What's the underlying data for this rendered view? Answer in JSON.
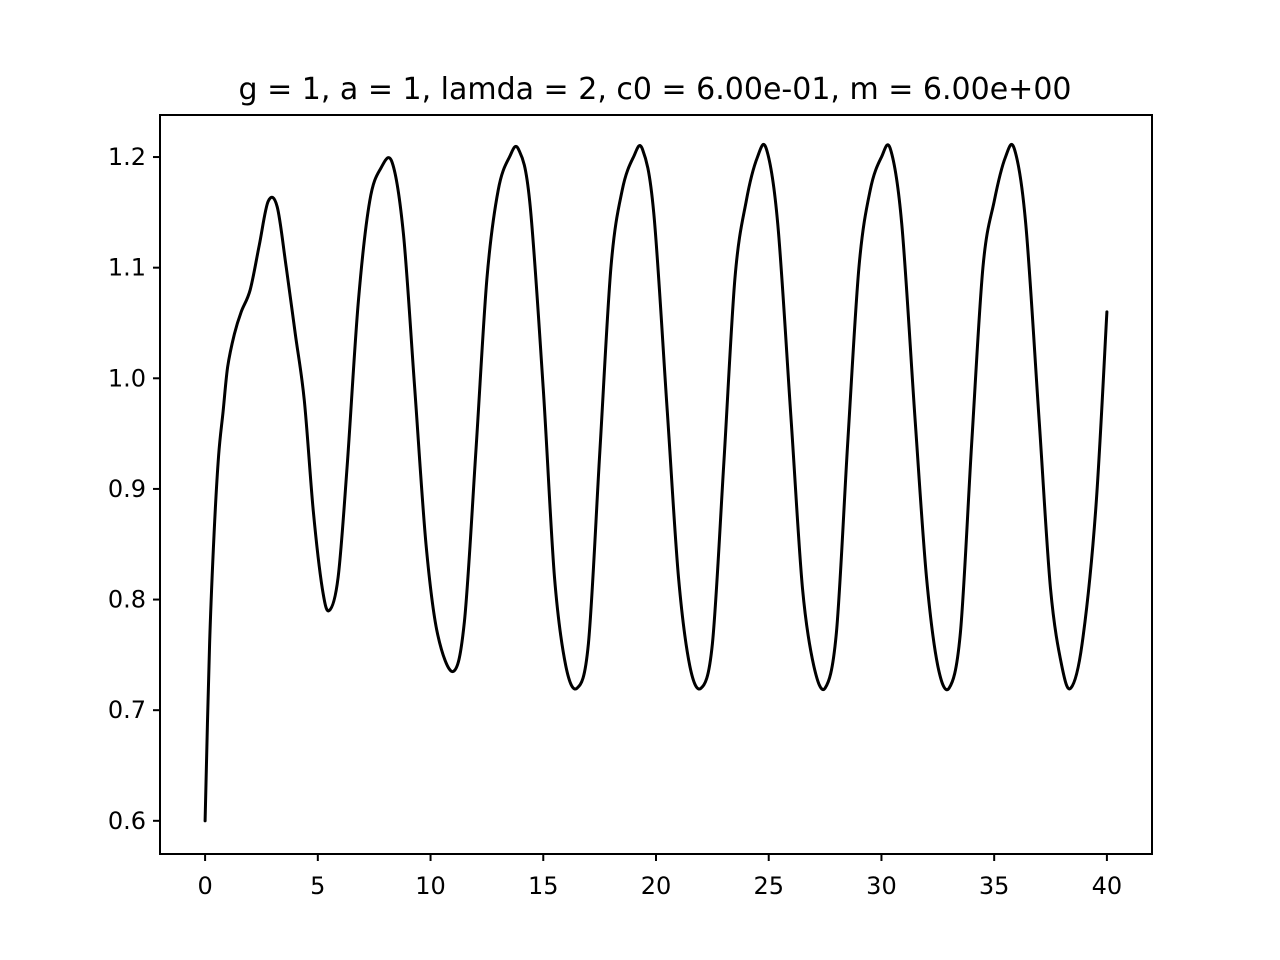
{
  "chart_data": {
    "type": "line",
    "title": "g = 1, a = 1, lamda = 2, c0 = 6.00e-01, m = 6.00e+00",
    "xlabel": "",
    "ylabel": "",
    "xlim": [
      -2,
      42
    ],
    "ylim": [
      0.57,
      1.238
    ],
    "grid": false,
    "legend": "none",
    "xticks": [
      0,
      5,
      10,
      15,
      20,
      25,
      30,
      35,
      40
    ],
    "xtick_labels": [
      "0",
      "5",
      "10",
      "15",
      "20",
      "25",
      "30",
      "35",
      "40"
    ],
    "yticks": [
      0.6,
      0.7,
      0.8,
      0.9,
      1.0,
      1.1,
      1.2
    ],
    "ytick_labels": [
      "0.6",
      "0.7",
      "0.8",
      "0.9",
      "1.0",
      "1.1",
      "1.2"
    ],
    "line_color": "#000000",
    "series": [
      {
        "x": [
          0,
          0.2,
          0.4,
          0.6,
          0.8,
          1.0,
          1.3,
          1.6,
          2.0,
          2.4,
          2.8,
          3.2,
          3.6,
          4.0,
          4.4,
          4.8,
          5.2,
          5.5,
          5.9,
          6.3,
          6.8,
          7.3,
          7.8,
          8.3,
          8.8,
          9.3,
          9.8,
          10.3,
          11.0,
          11.5,
          12.0,
          12.5,
          13.0,
          13.5,
          13.9,
          14.4,
          15.0,
          15.5,
          16.0,
          16.5,
          17.0,
          17.5,
          18.0,
          18.5,
          19.0,
          19.4,
          19.9,
          20.5,
          21.0,
          21.5,
          22.0,
          22.5,
          23.0,
          23.5,
          24.0,
          24.5,
          24.9,
          25.4,
          26.0,
          26.5,
          27.0,
          27.5,
          28.0,
          28.5,
          29.0,
          29.5,
          30.0,
          30.4,
          30.9,
          31.5,
          32.0,
          32.5,
          33.0,
          33.5,
          34.0,
          34.5,
          35.0,
          35.5,
          35.9,
          36.4,
          37.0,
          37.5,
          38.0,
          38.4,
          38.9,
          39.5,
          40.0
        ],
        "y": [
          0.6,
          0.76,
          0.86,
          0.93,
          0.97,
          1.01,
          1.04,
          1.06,
          1.08,
          1.12,
          1.16,
          1.155,
          1.1,
          1.04,
          0.98,
          0.88,
          0.81,
          0.79,
          0.82,
          0.92,
          1.07,
          1.16,
          1.19,
          1.195,
          1.13,
          0.99,
          0.85,
          0.77,
          0.735,
          0.78,
          0.93,
          1.09,
          1.17,
          1.2,
          1.207,
          1.16,
          0.99,
          0.82,
          0.74,
          0.72,
          0.76,
          0.93,
          1.1,
          1.17,
          1.2,
          1.207,
          1.15,
          0.97,
          0.82,
          0.74,
          0.72,
          0.76,
          0.92,
          1.09,
          1.16,
          1.2,
          1.207,
          1.14,
          0.96,
          0.81,
          0.74,
          0.72,
          0.77,
          0.94,
          1.1,
          1.17,
          1.2,
          1.207,
          1.14,
          0.96,
          0.82,
          0.74,
          0.72,
          0.77,
          0.94,
          1.1,
          1.16,
          1.2,
          1.207,
          1.14,
          0.96,
          0.81,
          0.74,
          0.72,
          0.76,
          0.88,
          1.06
        ]
      }
    ]
  }
}
